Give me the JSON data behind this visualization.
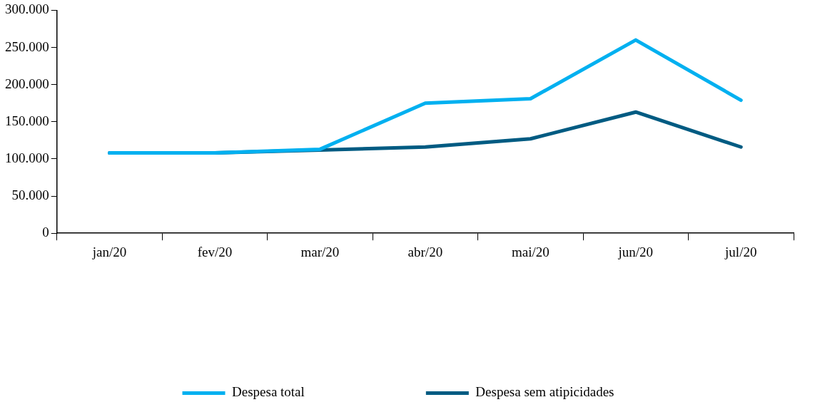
{
  "chart_data": {
    "type": "line",
    "categories": [
      "jan/20",
      "fev/20",
      "mar/20",
      "abr/20",
      "mai/20",
      "jun/20",
      "jul/20"
    ],
    "series": [
      {
        "name": "Despesa total",
        "color": "#00b0f0",
        "values": [
          108000,
          108000,
          113000,
          175000,
          181000,
          260000,
          179000
        ]
      },
      {
        "name": "Despesa sem atipicidades",
        "color": "#005b82",
        "values": [
          108000,
          108000,
          112000,
          116000,
          127000,
          163000,
          116000
        ]
      }
    ],
    "ylim": [
      0,
      300000
    ],
    "yticks": [
      {
        "value": 0,
        "label": "0"
      },
      {
        "value": 50000,
        "label": "50.000"
      },
      {
        "value": 100000,
        "label": "100.000"
      },
      {
        "value": 150000,
        "label": "150.000"
      },
      {
        "value": 200000,
        "label": "200.000"
      },
      {
        "value": 250000,
        "label": "250.000"
      },
      {
        "value": 300000,
        "label": "300.000"
      }
    ],
    "grid": false,
    "legend": "bottom",
    "marker": "none",
    "line_style": "solid"
  }
}
